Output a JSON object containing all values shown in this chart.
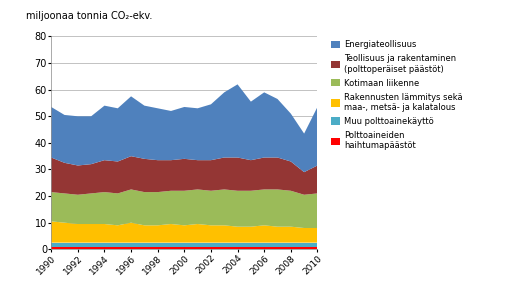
{
  "years": [
    1990,
    1991,
    1992,
    1993,
    1994,
    1995,
    1996,
    1997,
    1998,
    1999,
    2000,
    2001,
    2002,
    2003,
    2004,
    2005,
    2006,
    2007,
    2008,
    2009,
    2010
  ],
  "series": {
    "Polttoaineiden haihtumapäästöt": [
      1.0,
      1.0,
      1.0,
      1.0,
      1.0,
      1.0,
      1.0,
      1.0,
      1.0,
      1.0,
      1.0,
      1.0,
      1.0,
      1.0,
      1.0,
      1.0,
      1.0,
      1.0,
      1.0,
      1.0,
      1.0
    ],
    "Muu polttoainekäyttö": [
      1.5,
      1.5,
      1.5,
      1.5,
      1.5,
      1.5,
      1.5,
      1.5,
      1.5,
      1.5,
      1.5,
      1.5,
      1.5,
      1.5,
      1.5,
      1.5,
      1.5,
      1.5,
      1.5,
      1.5,
      1.5
    ],
    "Rakennusten lämmitys sekä maa-, metsä- ja kalatalous": [
      8.0,
      7.5,
      7.0,
      7.0,
      7.0,
      6.5,
      7.5,
      6.5,
      6.5,
      7.0,
      6.5,
      7.0,
      6.5,
      6.5,
      6.0,
      6.0,
      6.5,
      6.0,
      6.0,
      5.5,
      5.5
    ],
    "Kotimaan liikenne": [
      11.0,
      11.0,
      11.0,
      11.5,
      12.0,
      12.0,
      12.5,
      12.5,
      12.5,
      12.5,
      13.0,
      13.0,
      13.0,
      13.5,
      13.5,
      13.5,
      13.5,
      14.0,
      13.5,
      12.5,
      13.0
    ],
    "Teollisuus ja rakentaminen (polttoperäiset päästöt)": [
      13.0,
      11.5,
      11.0,
      11.0,
      12.0,
      12.0,
      12.5,
      12.5,
      12.0,
      11.5,
      12.0,
      11.0,
      11.5,
      12.0,
      12.5,
      11.5,
      12.0,
      12.0,
      11.0,
      8.5,
      10.5
    ],
    "Energiateollisuus": [
      19.0,
      18.0,
      18.5,
      18.0,
      20.5,
      20.0,
      22.5,
      20.0,
      19.5,
      18.5,
      19.5,
      19.5,
      21.0,
      24.5,
      27.5,
      22.0,
      24.5,
      22.0,
      18.0,
      14.5,
      22.0
    ]
  },
  "stack_order": [
    "Polttoaineiden haihtumapäästöt",
    "Muu polttoainekäyttö",
    "Rakennusten lämmitys sekä maa-, metsä- ja kalatalous",
    "Kotimaan liikenne",
    "Teollisuus ja rakentaminen (polttoperäiset päästöt)",
    "Energiateollisuus"
  ],
  "colors": {
    "Polttoaineiden haihtumapäästöt": "#FF0000",
    "Muu polttoainekäyttö": "#4BACC6",
    "Rakennusten lämmitys sekä maa-, metsä- ja kalatalous": "#FFC000",
    "Kotimaan liikenne": "#9BBB59",
    "Teollisuus ja rakentaminen (polttoperäiset päästöt)": "#943634",
    "Energiateollisuus": "#4F81BD"
  },
  "legend_labels": [
    "Energiateollisuus",
    "Teollisuus ja rakentaminen\n(polttoperäiset päästöt)",
    "Kotimaan liikenne",
    "Rakennusten lämmitys sekä\nmaa-, metsä- ja kalatalous",
    "Muu polttoainekäyttö",
    "Polttoaineiden\nhaihtumapäästöt"
  ],
  "legend_colors": [
    "#4F81BD",
    "#943634",
    "#9BBB59",
    "#FFC000",
    "#4BACC6",
    "#FF0000"
  ],
  "title": "miljoonaa tonnia CO₂-ekv.",
  "ylim": [
    0,
    80
  ],
  "yticks": [
    0,
    10,
    20,
    30,
    40,
    50,
    60,
    70,
    80
  ],
  "xticks": [
    1990,
    1992,
    1994,
    1996,
    1998,
    2000,
    2002,
    2004,
    2006,
    2008,
    2010
  ],
  "background_color": "#FFFFFF"
}
